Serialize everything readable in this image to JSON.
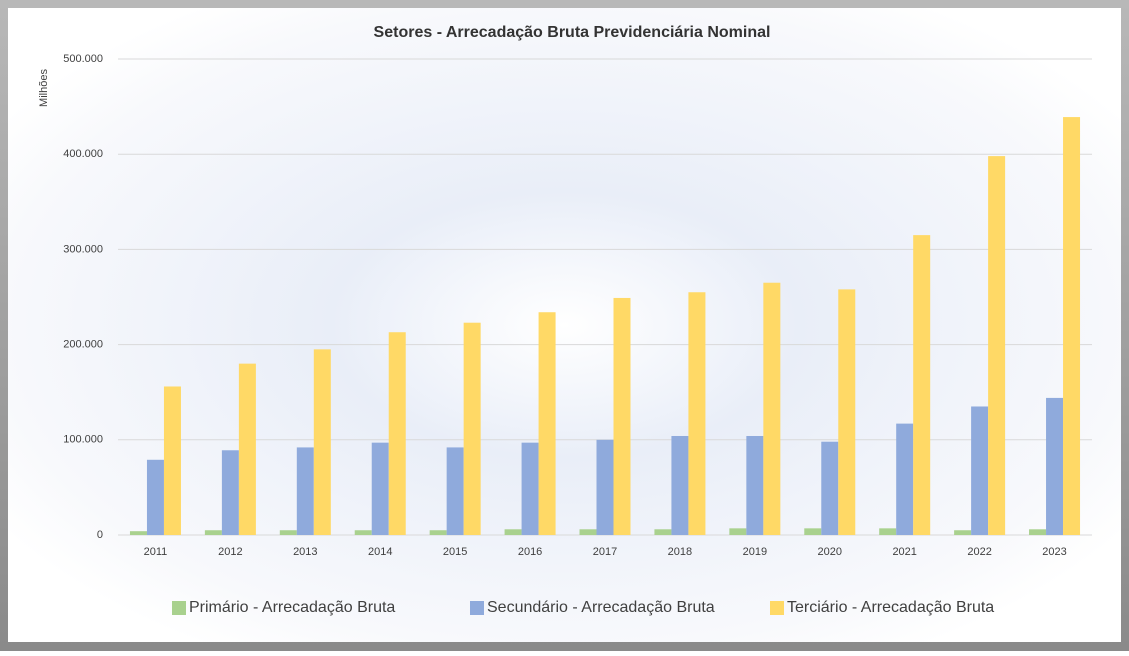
{
  "chart_data": {
    "type": "bar",
    "title": "Setores - Arrecadação Bruta Previdenciária Nominal",
    "y_axis_label": "Milhões",
    "categories": [
      "2011",
      "2012",
      "2013",
      "2014",
      "2015",
      "2016",
      "2017",
      "2018",
      "2019",
      "2020",
      "2021",
      "2022",
      "2023"
    ],
    "series": [
      {
        "name": "Primário - Arrecadação Bruta",
        "color": "#a9d18e",
        "values": [
          4000,
          5000,
          5000,
          5000,
          5000,
          6000,
          6000,
          6000,
          7000,
          7000,
          7000,
          5000,
          6000
        ]
      },
      {
        "name": "Secundário - Arrecadação Bruta",
        "color": "#8faadc",
        "values": [
          79000,
          89000,
          92000,
          97000,
          92000,
          97000,
          100000,
          104000,
          104000,
          98000,
          117000,
          135000,
          144000
        ]
      },
      {
        "name": "Terciário - Arrecadação Bruta",
        "color": "#ffd966",
        "values": [
          156000,
          180000,
          195000,
          213000,
          223000,
          234000,
          249000,
          255000,
          265000,
          258000,
          315000,
          398000,
          439000
        ]
      }
    ],
    "ylim": [
      0,
      500000
    ],
    "yticks": [
      0,
      {
        "value": 100000,
        "label": "100.000"
      },
      {
        "value": 200000,
        "label": "200.000"
      },
      {
        "value": 300000,
        "label": "300.000"
      },
      {
        "value": 400000,
        "label": "400.000"
      },
      {
        "value": 500000,
        "label": "500.000"
      }
    ],
    "grid": true,
    "legend": "bottom"
  }
}
